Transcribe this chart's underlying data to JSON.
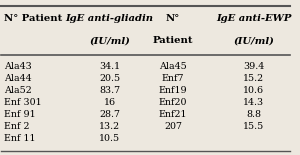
{
  "col1_header1": "N° Patient",
  "col2_header1": "IgE anti-gliadin",
  "col2_header2": "(IU/ml)",
  "col3_header1": "N°",
  "col3_header2": "Patient",
  "col4_header1": "IgE anti-EWP",
  "col4_header2": "(IU/ml)",
  "left_patients": [
    "Ala43",
    "Ala44",
    "Ala52",
    "Enf 301",
    "Enf 91",
    "Enf 2",
    "Enf 11"
  ],
  "left_values": [
    "34.1",
    "20.5",
    "83.7",
    "16",
    "28.7",
    "13.2",
    "10.5"
  ],
  "right_patients": [
    "Ala45",
    "Enf7",
    "Enf19",
    "Enf20",
    "Enf21",
    "207"
  ],
  "right_values": [
    "39.4",
    "15.2",
    "10.6",
    "14.3",
    "8.8",
    "15.5"
  ],
  "bg_color": "#ede8df",
  "line_color": "#555555"
}
